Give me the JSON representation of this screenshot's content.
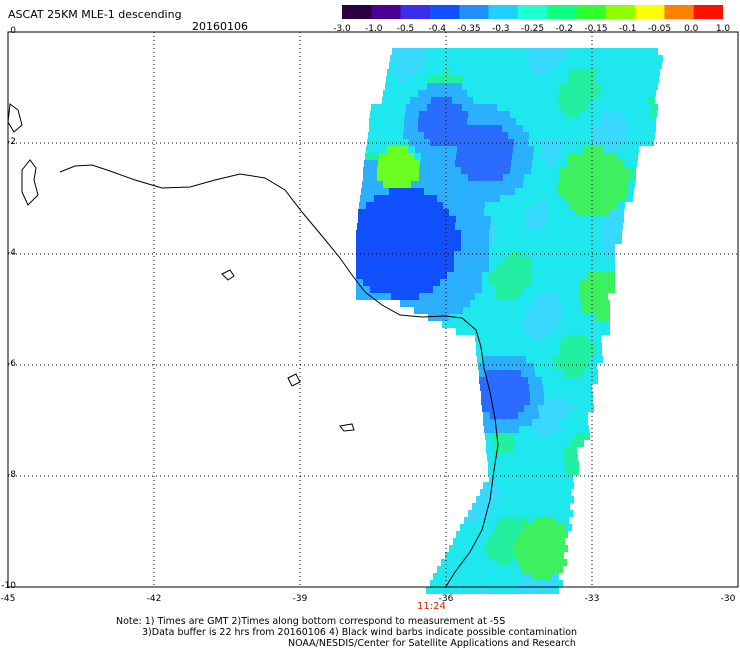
{
  "title": "ASCAT 25KM MLE-1 descending",
  "date": "20160106",
  "colorbar": {
    "labels": [
      "-3.0",
      "-1.0",
      "-0.5",
      "-0.4",
      "-0.35",
      "-0.3",
      "-0.25",
      "-0.2",
      "-0.15",
      "-0.1",
      "-0.05",
      "0.0",
      "1.0"
    ],
    "colors": [
      "#2a0040",
      "#4a0090",
      "#3a2ee8",
      "#1050ff",
      "#2090ff",
      "#20d0ff",
      "#20ffd0",
      "#10ff80",
      "#30ff30",
      "#90ff00",
      "#ffff00",
      "#ff8000",
      "#ff1000"
    ]
  },
  "axes": {
    "y_labels": [
      "0",
      "-2",
      "-4",
      "-6",
      "-8",
      "-10"
    ],
    "x_labels": [
      "-45",
      "-42",
      "-39",
      "-36",
      "-33",
      "-30"
    ]
  },
  "time_label": "11:24",
  "notes": [
    "Note: 1) Times are GMT 2)Times along bottom correspond to measurement at -5S",
    "3)Data buffer is 22 hrs from 20160106 4) Black wind barbs indicate possible contamination",
    "NOAA/NESDIS/Center for Satellite Applications and Research"
  ]
}
